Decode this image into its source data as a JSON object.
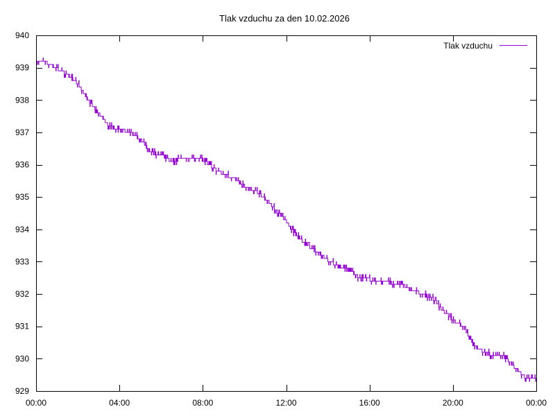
{
  "chart_data": {
    "type": "line",
    "title": "Tlak vzduchu za den 10.02.2026",
    "xlabel": "",
    "ylabel": "",
    "ylim": [
      929,
      940
    ],
    "xlim": [
      "00:00",
      "24:00"
    ],
    "y_ticks": [
      "929",
      "930",
      "931",
      "932",
      "933",
      "934",
      "935",
      "936",
      "937",
      "938",
      "939",
      "940"
    ],
    "x_ticks": [
      "00:00",
      "04:00",
      "08:00",
      "12:00",
      "16:00",
      "20:00",
      "00:00"
    ],
    "grid": false,
    "legend_position": "top-right",
    "series": [
      {
        "name": "Tlak vzduchu",
        "color": "#9400D3",
        "x_hours": [
          0.0,
          0.4,
          0.9,
          1.5,
          2.0,
          2.5,
          3.0,
          3.5,
          4.0,
          4.5,
          5.0,
          5.5,
          6.0,
          6.5,
          7.0,
          7.5,
          8.0,
          8.5,
          9.0,
          9.5,
          10.0,
          10.5,
          11.0,
          11.5,
          12.0,
          12.5,
          13.0,
          13.5,
          14.0,
          14.5,
          15.0,
          15.5,
          16.0,
          16.5,
          17.0,
          17.5,
          18.0,
          18.5,
          19.0,
          19.5,
          20.0,
          20.5,
          21.0,
          21.5,
          22.0,
          22.5,
          23.0,
          23.5,
          24.0
        ],
        "y_values": [
          939.2,
          939.2,
          939.0,
          938.8,
          938.5,
          938.0,
          937.6,
          937.2,
          937.1,
          937.0,
          936.8,
          936.4,
          936.3,
          936.1,
          936.2,
          936.15,
          936.15,
          935.9,
          935.7,
          935.6,
          935.35,
          935.2,
          934.95,
          934.6,
          934.25,
          933.8,
          933.5,
          933.3,
          933.05,
          932.85,
          932.8,
          932.5,
          932.45,
          932.4,
          932.35,
          932.3,
          932.15,
          932.0,
          931.9,
          931.5,
          931.2,
          931.0,
          930.4,
          930.2,
          930.1,
          930.05,
          929.7,
          929.4,
          929.4
        ]
      }
    ]
  }
}
